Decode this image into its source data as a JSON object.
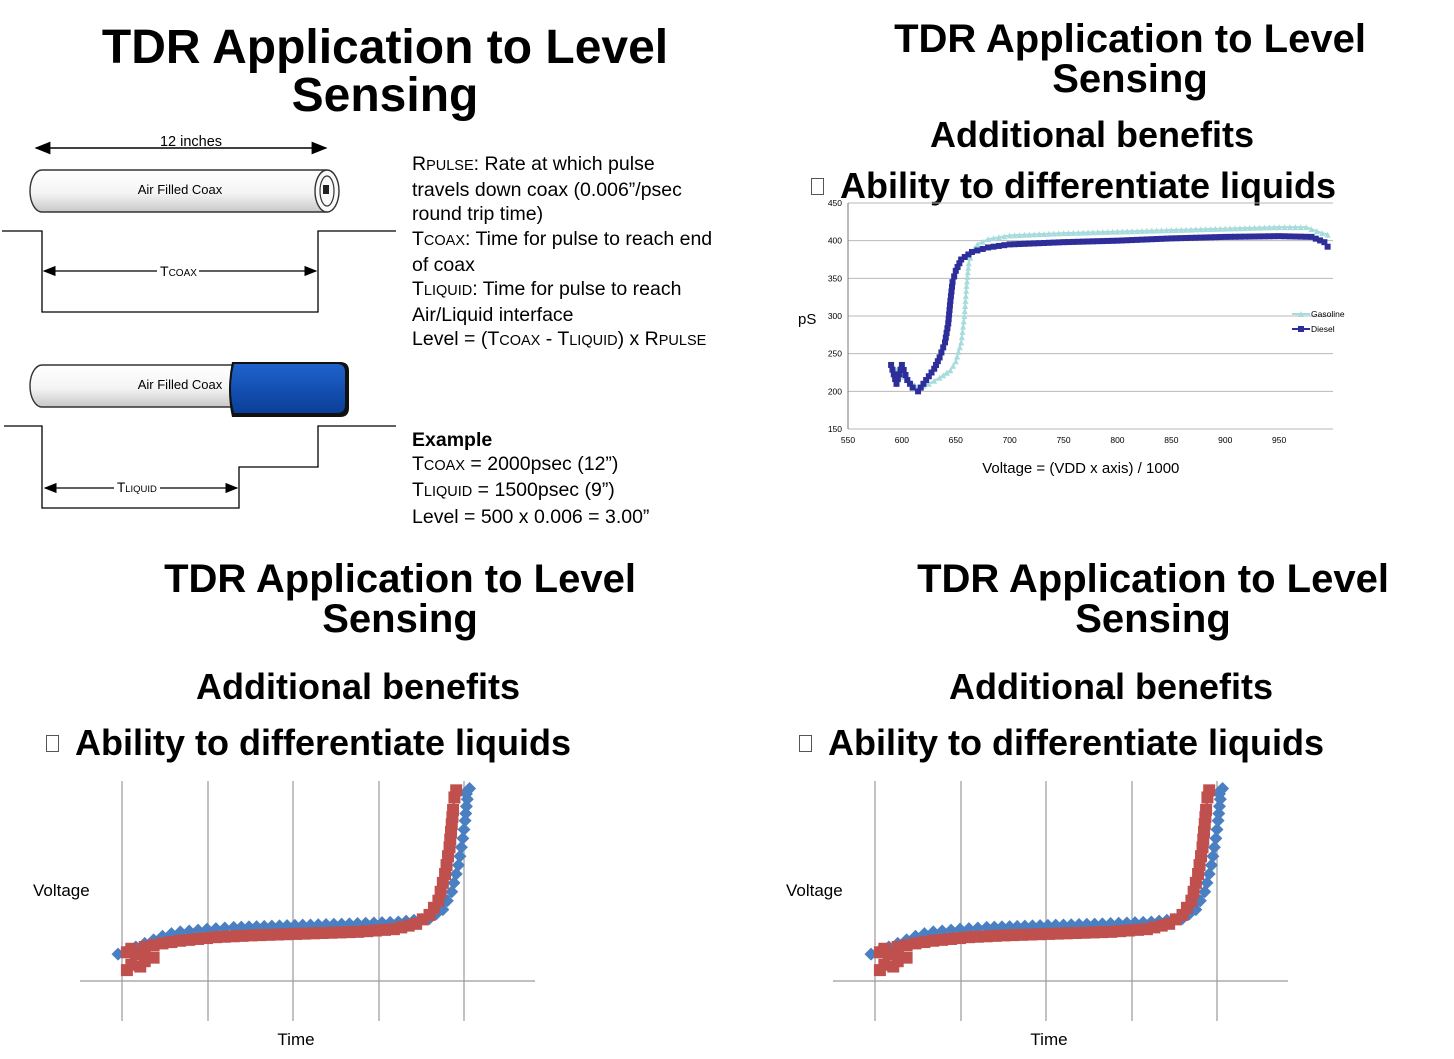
{
  "q1": {
    "title_l1": "TDR Application to Level",
    "title_l2": "Sensing",
    "dim_label": "12 inches",
    "coax_top_label": "Air Filled Coax",
    "coax_bottom_label": "Air Filled Coax",
    "tcoax_sym": "T",
    "tcoax_sub": "COAX",
    "tliquid_sym": "T",
    "tliquid_sub": "LIQUID",
    "rpulse": {
      "sym": "R",
      "sub": "PULSE",
      "text": ": Rate at which pulse",
      "line2": "travels down coax (0.006”/psec",
      "line3": "round trip time)"
    },
    "tcoax_def": {
      "sym": "T",
      "sub": "COAX",
      "text": ": Time for pulse to reach end",
      "line2": "of coax"
    },
    "tliquid_def": {
      "sym": "T",
      "sub": "LIQUID",
      "text": ": Time for pulse to reach",
      "line2": "Air/Liquid interface"
    },
    "level_formula": {
      "p1": "Level = (T",
      "s1": "COAX",
      "p2": " - T",
      "s2": "LIQUID",
      "p3": ") x R",
      "s3": "PULSE"
    },
    "example_heading": "Example",
    "ex1": {
      "sym": "T",
      "sub": "COAX",
      "text": " = 2000psec (12”)"
    },
    "ex2": {
      "sym": "T",
      "sub": "LIQUID",
      "text": " = 1500psec (9”)"
    },
    "ex3": "Level = 500 x 0.006 = 3.00”",
    "coax_fill_color": "#0b4fb5"
  },
  "q2": {
    "title_l1": "TDR Application to Level",
    "title_l2": "Sensing",
    "subtitle": "Additional benefits",
    "bullet": "Ability to differentiate liquids"
  },
  "q3": {
    "title_l1": "TDR Application to Level",
    "title_l2": "Sensing",
    "subtitle": "Additional benefits",
    "bullet": "Ability to differentiate liquids"
  },
  "q4": {
    "title_l1": "TDR Application to Level",
    "title_l2": "Sensing",
    "subtitle": "Additional benefits",
    "bullet": "Ability to differentiate liquids"
  },
  "chart_data": [
    {
      "type": "line",
      "title": "",
      "xlabel": "Voltage = (VDD x axis) / 1000",
      "ylabel": "pS",
      "xlim": [
        550,
        1000
      ],
      "ylim": [
        150,
        450
      ],
      "x_ticks": [
        550,
        600,
        650,
        700,
        750,
        800,
        850,
        900,
        950
      ],
      "y_ticks": [
        150,
        200,
        250,
        300,
        350,
        400,
        450
      ],
      "grid": true,
      "legend": "right",
      "series": [
        {
          "name": "Gasoline",
          "color": "#a8dcdc",
          "marker": "triangle",
          "x": [
            595,
            605,
            615,
            625,
            635,
            645,
            650,
            655,
            658,
            660,
            662,
            665,
            670,
            680,
            700,
            750,
            800,
            850,
            900,
            950,
            975,
            990,
            995
          ],
          "y": [
            228,
            215,
            205,
            210,
            218,
            228,
            240,
            265,
            300,
            340,
            370,
            385,
            395,
            402,
            407,
            410,
            412,
            414,
            416,
            418,
            418,
            410,
            408
          ]
        },
        {
          "name": "Diesel",
          "color": "#2e2e9a",
          "marker": "square",
          "x": [
            590,
            595,
            600,
            605,
            610,
            615,
            620,
            625,
            630,
            635,
            640,
            643,
            645,
            647,
            650,
            655,
            665,
            680,
            700,
            750,
            800,
            850,
            900,
            950,
            980,
            992,
            995
          ],
          "y": [
            235,
            210,
            235,
            215,
            205,
            200,
            210,
            220,
            230,
            245,
            265,
            290,
            320,
            345,
            360,
            375,
            385,
            391,
            395,
            398,
            400,
            403,
            405,
            406,
            405,
            398,
            392
          ]
        }
      ]
    },
    {
      "type": "line",
      "title": "",
      "xlabel": "Time",
      "ylabel": "Voltage",
      "grid": true,
      "series": [
        {
          "color": "#4a7fc1",
          "marker": "diamond",
          "x": [
            0,
            2,
            4,
            6,
            8,
            10,
            12,
            14,
            16,
            20,
            26,
            38,
            52,
            63,
            70,
            73,
            75,
            76.5,
            77.5,
            78,
            78.3,
            78.5,
            78.3,
            78.6,
            79
          ],
          "y": [
            5,
            7,
            9,
            11,
            13,
            15,
            16.5,
            17.5,
            18,
            19,
            20,
            21,
            22,
            23,
            25,
            30,
            40,
            55,
            70,
            80,
            88,
            92,
            95,
            97,
            98
          ]
        },
        {
          "color": "#c0504d",
          "marker": "square",
          "x": [
            2,
            3,
            5,
            6,
            8,
            4,
            2,
            3,
            6,
            10,
            14,
            18,
            22,
            30,
            42,
            54,
            62,
            67,
            70,
            72,
            73.5,
            74.5,
            75,
            75.3,
            75.6,
            76
          ],
          "y": [
            -4,
            -1,
            -2,
            1,
            3,
            5,
            6,
            8,
            9,
            11,
            12.5,
            13.5,
            14.5,
            15.5,
            16.5,
            17.5,
            19,
            22,
            27,
            35,
            50,
            65,
            78,
            86,
            93,
            97
          ]
        }
      ]
    },
    {
      "type": "line",
      "title": "",
      "xlabel": "Time",
      "ylabel": "Voltage",
      "grid": true,
      "series": [
        {
          "color": "#4a7fc1",
          "marker": "diamond",
          "x": [
            0,
            2,
            4,
            6,
            8,
            10,
            12,
            14,
            16,
            20,
            26,
            38,
            52,
            63,
            70,
            73,
            75,
            76.5,
            77.5,
            78,
            78.3,
            78.5,
            78.3,
            78.6,
            79
          ],
          "y": [
            5,
            7,
            9,
            11,
            13,
            15,
            16.5,
            17.5,
            18,
            19,
            20,
            21,
            22,
            23,
            25,
            30,
            40,
            55,
            70,
            80,
            88,
            92,
            95,
            97,
            98
          ]
        },
        {
          "color": "#c0504d",
          "marker": "square",
          "x": [
            2,
            3,
            5,
            6,
            8,
            4,
            2,
            3,
            6,
            10,
            14,
            18,
            22,
            30,
            42,
            54,
            62,
            67,
            70,
            72,
            73.5,
            74.5,
            75,
            75.3,
            75.6,
            76
          ],
          "y": [
            -4,
            -1,
            -2,
            1,
            3,
            5,
            6,
            8,
            9,
            11,
            12.5,
            13.5,
            14.5,
            15.5,
            16.5,
            17.5,
            19,
            22,
            27,
            35,
            50,
            65,
            78,
            86,
            93,
            97
          ]
        }
      ]
    }
  ]
}
